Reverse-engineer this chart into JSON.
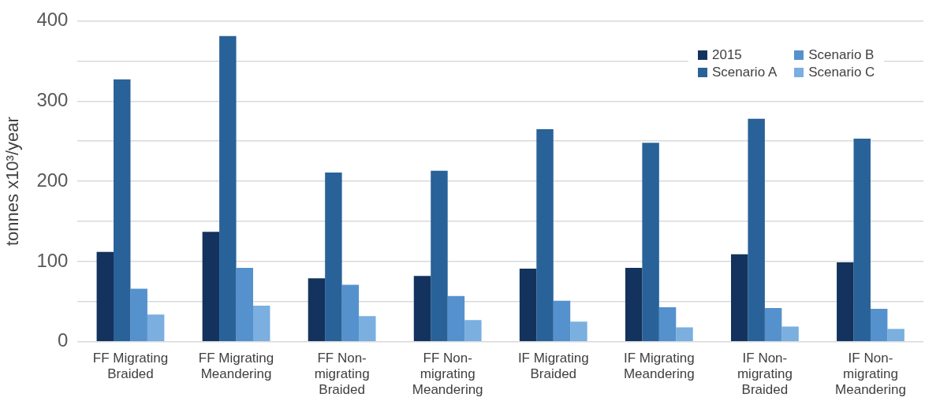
{
  "chart_data": {
    "type": "bar",
    "ylabel": "tonnes x10³/year",
    "categories": [
      "FF Migrating Braided",
      "FF Migrating Meandering",
      "FF Non-migrating Braided",
      "FF Non-migrating Meandering",
      "IF Migrating Braided",
      "IF Migrating Meandering",
      "IF Non-migrating Braided",
      "IF Non-migrating Meandering"
    ],
    "series": [
      {
        "name": "2015",
        "color": "#13335e",
        "values": [
          112,
          137,
          79,
          82,
          91,
          92,
          109,
          99
        ]
      },
      {
        "name": "Scenario A",
        "color": "#286299",
        "values": [
          327,
          381,
          211,
          213,
          265,
          248,
          278,
          253
        ]
      },
      {
        "name": "Scenario B",
        "color": "#5591cd",
        "values": [
          66,
          92,
          71,
          57,
          51,
          43,
          42,
          41
        ]
      },
      {
        "name": "Scenario C",
        "color": "#7aafdf",
        "values": [
          34,
          45,
          32,
          27,
          25,
          18,
          19,
          16
        ]
      }
    ],
    "ylim": [
      0,
      400
    ],
    "yticks": [
      0,
      {
        "value": 50,
        "label": null
      },
      100,
      {
        "value": 150,
        "label": null
      },
      200,
      {
        "value": 250,
        "label": null
      },
      300,
      {
        "value": 350,
        "label": null
      },
      400
    ],
    "grid": true,
    "legend": "top right"
  }
}
